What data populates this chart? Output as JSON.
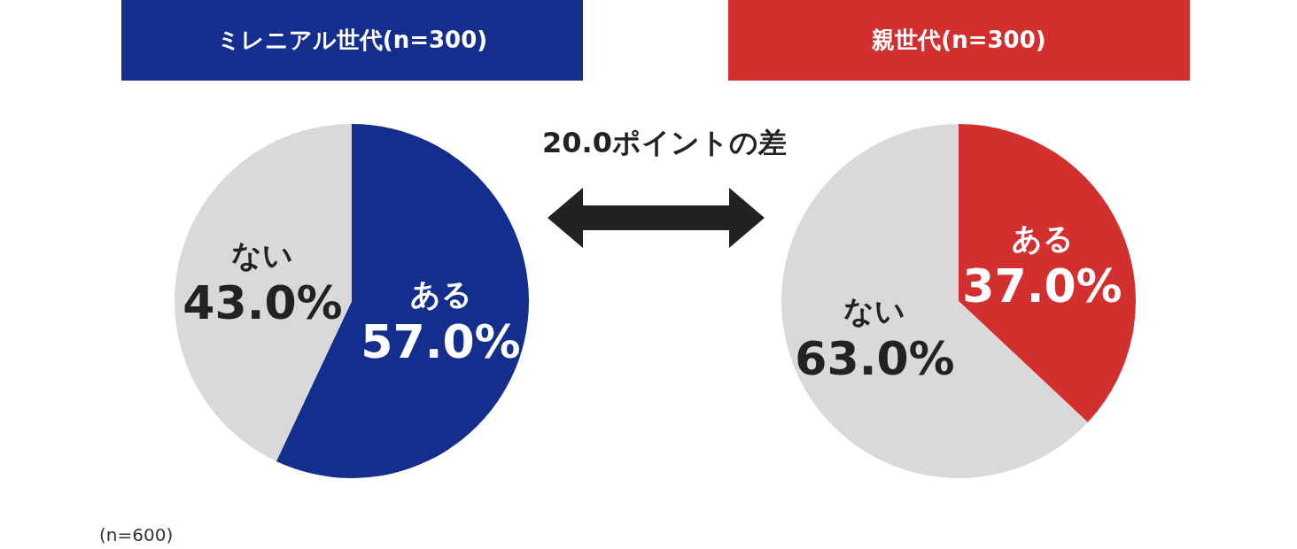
{
  "chart_data": [
    {
      "type": "pie",
      "title": "ミレニアル世代(n=300)",
      "categories": [
        "ある",
        "ない"
      ],
      "values": [
        57,
        43
      ],
      "value_labels": [
        "57.0%",
        "43.0%"
      ],
      "colors": [
        "#132e8c",
        "#d9d9d9"
      ],
      "annotations": [
        "20.0ポイントの差",
        "(n=600)"
      ]
    },
    {
      "type": "pie",
      "title": "親世代(n=300)",
      "categories": [
        "ある",
        "ない"
      ],
      "values": [
        37,
        63
      ],
      "value_labels": [
        "37.0%",
        "63.0%"
      ],
      "colors": [
        "#d32f2f",
        "#d9d9d9"
      ]
    }
  ]
}
